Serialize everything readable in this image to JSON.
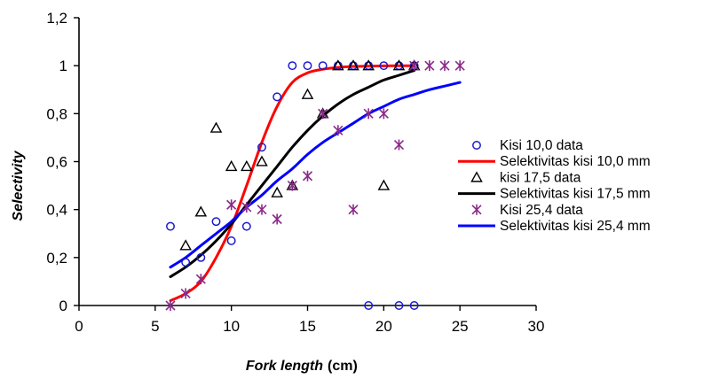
{
  "chart_data": {
    "type": "scatter",
    "title": "",
    "xlabel": "Fork length",
    "xlabel_unit": "(cm)",
    "ylabel": "Selectivity",
    "xlim": [
      0,
      30
    ],
    "ylim": [
      0,
      1.2
    ],
    "x_ticks": [
      "0",
      "5",
      "10",
      "15",
      "20",
      "25",
      "30"
    ],
    "y_ticks": [
      "0",
      "0,2",
      "0,4",
      "0,6",
      "0,8",
      "1",
      "1,2"
    ],
    "grid": false,
    "legend_position": "right",
    "series": [
      {
        "name": "Kisi 10,0 data",
        "kind": "points",
        "marker": "circle",
        "color": "#1a1ad0",
        "points": [
          [
            6,
            0.33
          ],
          [
            7,
            0.18
          ],
          [
            8,
            0.2
          ],
          [
            9,
            0.35
          ],
          [
            10,
            0.27
          ],
          [
            11,
            0.33
          ],
          [
            12,
            0.66
          ],
          [
            13,
            0.87
          ],
          [
            14,
            1
          ],
          [
            15,
            1
          ],
          [
            16,
            1
          ],
          [
            17,
            1
          ],
          [
            18,
            1
          ],
          [
            19,
            0
          ],
          [
            19,
            1
          ],
          [
            20,
            1
          ],
          [
            21,
            0
          ],
          [
            21,
            1
          ],
          [
            22,
            0
          ],
          [
            22,
            1
          ]
        ]
      },
      {
        "name": "Selektivitas kisi 10,0 mm",
        "kind": "line",
        "color": "#ff0000",
        "points": [
          [
            6,
            0.02
          ],
          [
            7,
            0.05
          ],
          [
            8,
            0.1
          ],
          [
            9,
            0.2
          ],
          [
            10,
            0.33
          ],
          [
            11,
            0.5
          ],
          [
            12,
            0.68
          ],
          [
            13,
            0.83
          ],
          [
            14,
            0.93
          ],
          [
            15,
            0.97
          ],
          [
            16,
            0.985
          ],
          [
            17,
            0.993
          ],
          [
            18,
            0.997
          ],
          [
            20,
            0.999
          ],
          [
            22,
            1
          ]
        ]
      },
      {
        "name": "kisi 17,5 data",
        "kind": "points",
        "marker": "triangle",
        "color": "#000000",
        "points": [
          [
            7,
            0.25
          ],
          [
            8,
            0.39
          ],
          [
            9,
            0.74
          ],
          [
            10,
            0.58
          ],
          [
            11,
            0.58
          ],
          [
            12,
            0.6
          ],
          [
            13,
            0.47
          ],
          [
            14,
            0.5
          ],
          [
            15,
            0.88
          ],
          [
            16,
            0.8
          ],
          [
            17,
            1
          ],
          [
            18,
            1
          ],
          [
            19,
            1
          ],
          [
            20,
            0.5
          ],
          [
            21,
            1
          ],
          [
            22,
            1
          ]
        ]
      },
      {
        "name": "Selektivitas kisi 17,5 mm",
        "kind": "line",
        "color": "#000000",
        "points": [
          [
            6,
            0.12
          ],
          [
            7,
            0.16
          ],
          [
            8,
            0.21
          ],
          [
            9,
            0.27
          ],
          [
            10,
            0.34
          ],
          [
            11,
            0.42
          ],
          [
            12,
            0.5
          ],
          [
            13,
            0.58
          ],
          [
            14,
            0.66
          ],
          [
            15,
            0.73
          ],
          [
            16,
            0.79
          ],
          [
            17,
            0.84
          ],
          [
            18,
            0.88
          ],
          [
            19,
            0.91
          ],
          [
            20,
            0.94
          ],
          [
            21,
            0.96
          ],
          [
            22,
            0.98
          ]
        ]
      },
      {
        "name": "Kisi 25,4 data",
        "kind": "points",
        "marker": "asterisk",
        "color": "#8a2a8a",
        "points": [
          [
            6,
            0
          ],
          [
            7,
            0.05
          ],
          [
            8,
            0.11
          ],
          [
            10,
            0.42
          ],
          [
            11,
            0.41
          ],
          [
            12,
            0.4
          ],
          [
            13,
            0.36
          ],
          [
            14,
            0.5
          ],
          [
            15,
            0.54
          ],
          [
            16,
            0.8
          ],
          [
            17,
            0.73
          ],
          [
            18,
            0.4
          ],
          [
            19,
            0.8
          ],
          [
            20,
            0.8
          ],
          [
            21,
            0.67
          ],
          [
            22,
            1
          ],
          [
            23,
            1
          ],
          [
            24,
            1
          ],
          [
            25,
            1
          ]
        ]
      },
      {
        "name": "Selektivitas kisi 25,4 mm",
        "kind": "line",
        "color": "#0000ff",
        "points": [
          [
            6,
            0.16
          ],
          [
            7,
            0.2
          ],
          [
            8,
            0.25
          ],
          [
            9,
            0.3
          ],
          [
            10,
            0.35
          ],
          [
            11,
            0.41
          ],
          [
            12,
            0.46
          ],
          [
            13,
            0.52
          ],
          [
            14,
            0.57
          ],
          [
            15,
            0.63
          ],
          [
            16,
            0.68
          ],
          [
            17,
            0.72
          ],
          [
            18,
            0.76
          ],
          [
            19,
            0.8
          ],
          [
            20,
            0.83
          ],
          [
            21,
            0.86
          ],
          [
            22,
            0.88
          ],
          [
            23,
            0.9
          ],
          [
            24,
            0.915
          ],
          [
            25,
            0.93
          ]
        ]
      }
    ]
  }
}
